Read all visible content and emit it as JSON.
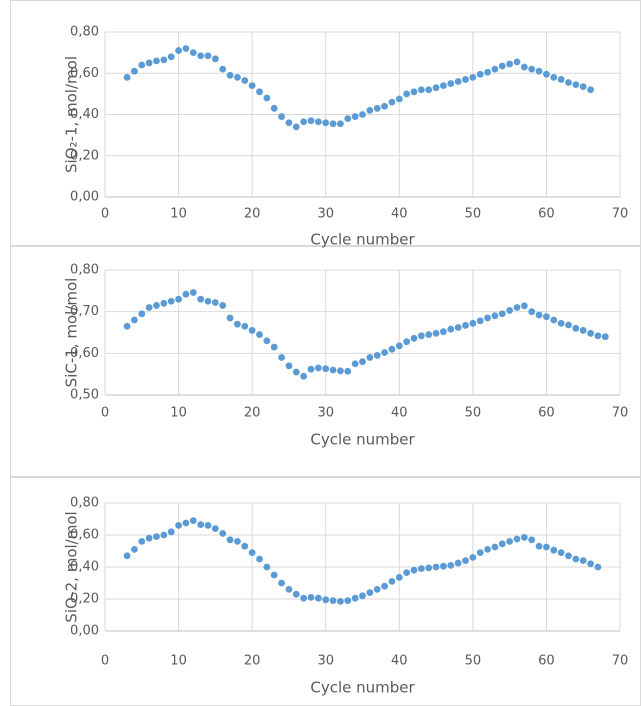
{
  "chart_data": [
    {
      "type": "scatter",
      "y_label": "SiO₂-1, mol/mol",
      "x_label": "Cycle number",
      "color": "#5b9bd5",
      "grid": true,
      "xlim": [
        0,
        70
      ],
      "xticks": [
        0,
        10,
        20,
        30,
        40,
        50,
        60,
        70
      ],
      "ylim": [
        0,
        0.8
      ],
      "yticks": [
        {
          "value": 0,
          "label": "0,00"
        },
        {
          "value": 0.2,
          "label": "0,20"
        },
        {
          "value": 0.4,
          "label": "0,40"
        },
        {
          "value": 0.6,
          "label": "0,60"
        },
        {
          "value": 0.8,
          "label": "0,80"
        }
      ],
      "x": [
        3,
        4,
        5,
        6,
        7,
        8,
        9,
        10,
        11,
        12,
        13,
        14,
        15,
        16,
        17,
        18,
        19,
        20,
        21,
        22,
        23,
        24,
        25,
        26,
        27,
        28,
        29,
        30,
        31,
        32,
        33,
        34,
        35,
        36,
        37,
        38,
        39,
        40,
        41,
        42,
        43,
        44,
        45,
        46,
        47,
        48,
        49,
        50,
        51,
        52,
        53,
        54,
        55,
        56,
        57,
        58,
        59,
        60,
        61,
        62,
        63,
        64,
        65,
        66
      ],
      "values": [
        0.58,
        0.61,
        0.64,
        0.65,
        0.66,
        0.665,
        0.68,
        0.71,
        0.72,
        0.7,
        0.685,
        0.685,
        0.67,
        0.62,
        0.59,
        0.58,
        0.565,
        0.54,
        0.51,
        0.48,
        0.43,
        0.39,
        0.36,
        0.34,
        0.365,
        0.37,
        0.365,
        0.36,
        0.355,
        0.355,
        0.38,
        0.39,
        0.4,
        0.42,
        0.43,
        0.44,
        0.46,
        0.475,
        0.5,
        0.51,
        0.52,
        0.52,
        0.53,
        0.54,
        0.55,
        0.56,
        0.57,
        0.58,
        0.595,
        0.605,
        0.62,
        0.635,
        0.645,
        0.655,
        0.63,
        0.62,
        0.61,
        0.595,
        0.58,
        0.57,
        0.555,
        0.545,
        0.535,
        0.52
      ]
    },
    {
      "type": "scatter",
      "y_label": "SiC-1, mol/mol",
      "x_label": "Cycle number",
      "color": "#5b9bd5",
      "grid": true,
      "xlim": [
        0,
        70
      ],
      "xticks": [
        0,
        10,
        20,
        30,
        40,
        50,
        60,
        70
      ],
      "ylim": [
        0.5,
        0.8
      ],
      "yticks": [
        {
          "value": 0.5,
          "label": "0,50"
        },
        {
          "value": 0.6,
          "label": "0,60"
        },
        {
          "value": 0.7,
          "label": "0,70"
        },
        {
          "value": 0.8,
          "label": "0,80"
        }
      ],
      "x": [
        3,
        4,
        5,
        6,
        7,
        8,
        9,
        10,
        11,
        12,
        13,
        14,
        15,
        16,
        17,
        18,
        19,
        20,
        21,
        22,
        23,
        24,
        25,
        26,
        27,
        28,
        29,
        30,
        31,
        32,
        33,
        34,
        35,
        36,
        37,
        38,
        39,
        40,
        41,
        42,
        43,
        44,
        45,
        46,
        47,
        48,
        49,
        50,
        51,
        52,
        53,
        54,
        55,
        56,
        57,
        58,
        59,
        60,
        61,
        62,
        63,
        64,
        65,
        66,
        67,
        68
      ],
      "values": [
        0.665,
        0.68,
        0.695,
        0.71,
        0.715,
        0.72,
        0.725,
        0.73,
        0.742,
        0.746,
        0.73,
        0.725,
        0.722,
        0.715,
        0.685,
        0.67,
        0.665,
        0.655,
        0.645,
        0.63,
        0.615,
        0.59,
        0.57,
        0.555,
        0.545,
        0.562,
        0.565,
        0.563,
        0.56,
        0.558,
        0.557,
        0.575,
        0.58,
        0.59,
        0.595,
        0.602,
        0.61,
        0.618,
        0.628,
        0.636,
        0.642,
        0.645,
        0.648,
        0.652,
        0.658,
        0.662,
        0.667,
        0.672,
        0.678,
        0.685,
        0.69,
        0.695,
        0.703,
        0.71,
        0.714,
        0.7,
        0.692,
        0.688,
        0.68,
        0.672,
        0.668,
        0.66,
        0.655,
        0.648,
        0.642,
        0.64
      ]
    },
    {
      "type": "scatter",
      "y_label": "SiO-2, mol/mol",
      "x_label": "Cycle number",
      "color": "#5b9bd5",
      "grid": true,
      "xlim": [
        0,
        70
      ],
      "xticks": [
        0,
        10,
        20,
        30,
        40,
        50,
        60,
        70
      ],
      "ylim": [
        0,
        0.8
      ],
      "yticks": [
        {
          "value": 0,
          "label": "0,00"
        },
        {
          "value": 0.2,
          "label": "0,20"
        },
        {
          "value": 0.4,
          "label": "0,40"
        },
        {
          "value": 0.6,
          "label": "0,60"
        },
        {
          "value": 0.8,
          "label": "0,80"
        }
      ],
      "x": [
        3,
        4,
        5,
        6,
        7,
        8,
        9,
        10,
        11,
        12,
        13,
        14,
        15,
        16,
        17,
        18,
        19,
        20,
        21,
        22,
        23,
        24,
        25,
        26,
        27,
        28,
        29,
        30,
        31,
        32,
        33,
        34,
        35,
        36,
        37,
        38,
        39,
        40,
        41,
        42,
        43,
        44,
        45,
        46,
        47,
        48,
        49,
        50,
        51,
        52,
        53,
        54,
        55,
        56,
        57,
        58,
        59,
        60,
        61,
        62,
        63,
        64,
        65,
        66,
        67
      ],
      "values": [
        0.47,
        0.51,
        0.56,
        0.58,
        0.59,
        0.6,
        0.62,
        0.66,
        0.675,
        0.69,
        0.665,
        0.66,
        0.64,
        0.61,
        0.57,
        0.56,
        0.53,
        0.49,
        0.45,
        0.4,
        0.35,
        0.3,
        0.26,
        0.23,
        0.205,
        0.21,
        0.205,
        0.195,
        0.19,
        0.185,
        0.19,
        0.205,
        0.22,
        0.24,
        0.26,
        0.28,
        0.31,
        0.335,
        0.365,
        0.38,
        0.39,
        0.395,
        0.4,
        0.405,
        0.41,
        0.425,
        0.44,
        0.46,
        0.49,
        0.51,
        0.525,
        0.545,
        0.56,
        0.575,
        0.585,
        0.57,
        0.53,
        0.525,
        0.505,
        0.49,
        0.47,
        0.45,
        0.44,
        0.42,
        0.4
      ]
    }
  ]
}
